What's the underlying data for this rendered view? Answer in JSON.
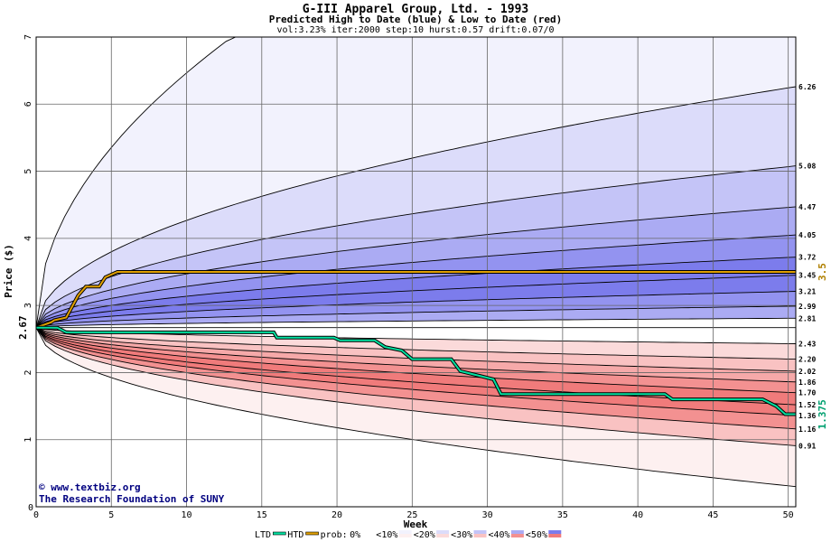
{
  "chart_data": {
    "type": "area",
    "title": "G-III Apparel Group, Ltd. - 1993",
    "subtitle": "Predicted High to Date (blue) &  Low to Date (red)",
    "params": "vol:3.23% iter:2000 step:10 hurst:0.57 drift:0.07/0",
    "xlabel": "Week",
    "ylabel": "Price ($)",
    "xlim": [
      0,
      50.5
    ],
    "ylim": [
      0,
      7
    ],
    "xticks": [
      "0",
      "5",
      "10",
      "15",
      "20",
      "25",
      "30",
      "35",
      "40",
      "45",
      "50"
    ],
    "yticks": [
      "1",
      "2",
      "3",
      "4",
      "5",
      "6",
      "7"
    ],
    "start_price": 2.67,
    "start_label": "2.67",
    "prob_level": 3.5,
    "prob_label": "3.5",
    "htd_final": 1.375,
    "htd_final_label": "1.375",
    "upper_end_values": [
      6.26,
      5.08,
      4.47,
      4.05,
      3.72,
      3.45,
      3.21,
      2.99,
      2.81
    ],
    "upper_end_labels": [
      "6.26",
      "5.08",
      "4.47",
      "4.05",
      "3.72",
      "3.45",
      "3.21",
      "2.99",
      "2.81"
    ],
    "lower_end_values": [
      2.43,
      2.2,
      2.02,
      1.86,
      1.7,
      1.52,
      1.36,
      1.16,
      0.91
    ],
    "lower_end_labels": [
      "2.43",
      "2.20",
      "2.02",
      "1.86",
      "1.70",
      "1.52",
      "1.36",
      "1.16",
      "0.91"
    ],
    "prob_series": {
      "name": "prob",
      "x": [
        0,
        1,
        1.2,
        2,
        2.8,
        3.3,
        4.2,
        4.6,
        5.4,
        50.5
      ],
      "y": [
        2.67,
        2.75,
        2.78,
        2.82,
        3.15,
        3.28,
        3.28,
        3.42,
        3.5,
        3.5
      ]
    },
    "htd_series": {
      "name": "HTD",
      "x": [
        0,
        1.4,
        2,
        15.8,
        16,
        19.8,
        20.2,
        22.5,
        23.2,
        24.3,
        25,
        27.6,
        28.2,
        29.5,
        30.4,
        30.9,
        41.8,
        42.3,
        48.3,
        49.2,
        49.8,
        50.5
      ],
      "y": [
        2.67,
        2.67,
        2.6,
        2.6,
        2.52,
        2.52,
        2.48,
        2.48,
        2.38,
        2.33,
        2.2,
        2.2,
        2.02,
        1.95,
        1.9,
        1.68,
        1.68,
        1.6,
        1.6,
        1.5,
        1.38,
        1.38
      ]
    },
    "legend": {
      "ltd": "LTD",
      "htd": "HTD",
      "prob": "prob:",
      "bands": [
        "0%",
        "<10%",
        "<20%",
        "<30%",
        "<40%",
        "<50%"
      ]
    },
    "colors": {
      "upper_bands": [
        "#f2f2fd",
        "#dcdcfa",
        "#c4c4f7",
        "#ababf3",
        "#9393f0",
        "#7c7cec"
      ],
      "lower_bands": [
        "#fdf0f0",
        "#fbdada",
        "#f9c2c2",
        "#f6a9a9",
        "#f39191",
        "#f07b7b"
      ],
      "htd": "#00e0a0",
      "prob": "#e0a000",
      "grid": "#666666"
    }
  },
  "credit": {
    "line1": "www.textbiz.org",
    "line2": "The Research Foundation of SUNY"
  }
}
